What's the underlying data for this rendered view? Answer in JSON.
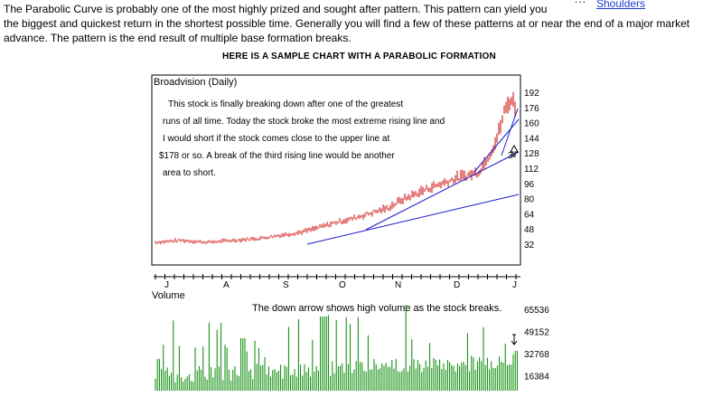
{
  "intro": {
    "line1": "The Parabolic Curve is probably one of the most highly prized and sought after pattern. This pattern can yield you",
    "line2": "the biggest and quickest return in the shortest possible time. Generally you will find a few of these patterns at or near the end of a major market",
    "line3": "advance. The pattern is the end result of multiple base formation breaks."
  },
  "nav_link": "Shoulders",
  "nav_prefix": "...",
  "section_heading": "HERE IS A SAMPLE CHART WITH A PARABOLIC FORMATION",
  "chart_data": [
    {
      "type": "bar",
      "title": "Broadvision (Daily)",
      "x_tick_labels": [
        "J",
        "A",
        "S",
        "O",
        "N",
        "D",
        "J"
      ],
      "y_tick_labels": [
        "192",
        "176",
        "160",
        "144",
        "128",
        "112",
        "96",
        "80",
        "64",
        "48",
        "32"
      ],
      "ylim": [
        32,
        192
      ],
      "annotation_lines": [
        "This stock is finally breaking down after one of the greatest",
        "runs of all time.  Today the stock broke the most extreme rising line and",
        "I would short if the stock comes close to the upper line at",
        "$178 or so.  A break of the third rising line would be another",
        "area to short."
      ],
      "marker_label": "3",
      "price_color": "#cc0000",
      "trendline_color": "#1a1acc",
      "approx_close": [
        [
          0,
          34
        ],
        [
          10,
          35
        ],
        [
          20,
          36
        ],
        [
          30,
          35
        ],
        [
          40,
          34
        ],
        [
          50,
          35
        ],
        [
          60,
          36
        ],
        [
          70,
          37
        ],
        [
          80,
          38
        ],
        [
          90,
          40
        ],
        [
          100,
          42
        ],
        [
          110,
          44
        ],
        [
          120,
          47
        ],
        [
          130,
          51
        ],
        [
          140,
          55
        ],
        [
          150,
          58
        ],
        [
          160,
          62
        ],
        [
          170,
          66
        ],
        [
          180,
          70
        ],
        [
          190,
          78
        ],
        [
          200,
          84
        ],
        [
          210,
          90
        ],
        [
          220,
          95
        ],
        [
          230,
          100
        ],
        [
          240,
          104
        ],
        [
          250,
          108
        ],
        [
          255,
          118
        ],
        [
          260,
          130
        ],
        [
          265,
          145
        ],
        [
          270,
          170
        ],
        [
          275,
          185
        ],
        [
          278,
          180
        ],
        [
          280,
          172
        ]
      ]
    },
    {
      "type": "bar",
      "title": "Volume",
      "y_tick_labels": [
        "65536",
        "49152",
        "32768",
        "16384"
      ],
      "annotation": "The down arrow shows high volume as the stock breaks.",
      "bar_color": "#008800"
    }
  ]
}
